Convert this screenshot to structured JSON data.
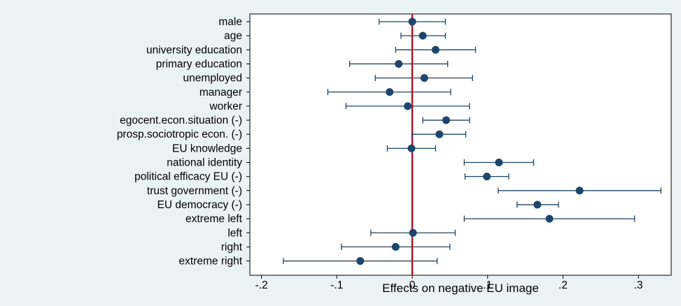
{
  "chart_data": {
    "type": "scatter",
    "subtype": "coefficient-plot-with-confidence-intervals",
    "title": "",
    "xlabel": "Effects on negative EU image",
    "ylabel": "",
    "xlim": [
      -0.2,
      0.35
    ],
    "xticks": [
      {
        "value": -0.2,
        "label": "-.2"
      },
      {
        "value": -0.1,
        "label": "-.1"
      },
      {
        "value": 0,
        "label": "0"
      },
      {
        "value": 0.1,
        "label": ".1"
      },
      {
        "value": 0.2,
        "label": ".2"
      },
      {
        "value": 0.3,
        "label": ".3"
      }
    ],
    "reference_line": {
      "x": 0,
      "color": "#c0102a"
    },
    "marker_color": "#1a476f",
    "grid": false,
    "points": [
      {
        "label": "male",
        "estimate": 0.0,
        "ci_low": -0.044,
        "ci_high": 0.044
      },
      {
        "label": "age",
        "estimate": 0.014,
        "ci_low": -0.015,
        "ci_high": 0.044
      },
      {
        "label": "university education",
        "estimate": 0.031,
        "ci_low": -0.022,
        "ci_high": 0.084
      },
      {
        "label": "primary education",
        "estimate": -0.018,
        "ci_low": -0.083,
        "ci_high": 0.047
      },
      {
        "label": "unemployed",
        "estimate": 0.016,
        "ci_low": -0.049,
        "ci_high": 0.08
      },
      {
        "label": "manager",
        "estimate": -0.03,
        "ci_low": -0.112,
        "ci_high": 0.051
      },
      {
        "label": "worker",
        "estimate": -0.006,
        "ci_low": -0.088,
        "ci_high": 0.076
      },
      {
        "label": "egocent.econ.situation (-)",
        "estimate": 0.045,
        "ci_low": 0.014,
        "ci_high": 0.076
      },
      {
        "label": "prosp.sociotropic econ. (-)",
        "estimate": 0.036,
        "ci_low": 0.0,
        "ci_high": 0.071
      },
      {
        "label": "EU knowledge",
        "estimate": -0.001,
        "ci_low": -0.033,
        "ci_high": 0.031
      },
      {
        "label": "national identity",
        "estimate": 0.115,
        "ci_low": 0.069,
        "ci_high": 0.161
      },
      {
        "label": "political efficacy EU (-)",
        "estimate": 0.099,
        "ci_low": 0.07,
        "ci_high": 0.128
      },
      {
        "label": "trust government (-)",
        "estimate": 0.222,
        "ci_low": 0.114,
        "ci_high": 0.33
      },
      {
        "label": "EU democracy (-)",
        "estimate": 0.166,
        "ci_low": 0.139,
        "ci_high": 0.194
      },
      {
        "label": "extreme left",
        "estimate": 0.182,
        "ci_low": 0.069,
        "ci_high": 0.295
      },
      {
        "label": "left",
        "estimate": 0.001,
        "ci_low": -0.055,
        "ci_high": 0.057
      },
      {
        "label": "right",
        "estimate": -0.022,
        "ci_low": -0.094,
        "ci_high": 0.05
      },
      {
        "label": "extreme right",
        "estimate": -0.069,
        "ci_low": -0.171,
        "ci_high": 0.033
      }
    ]
  }
}
